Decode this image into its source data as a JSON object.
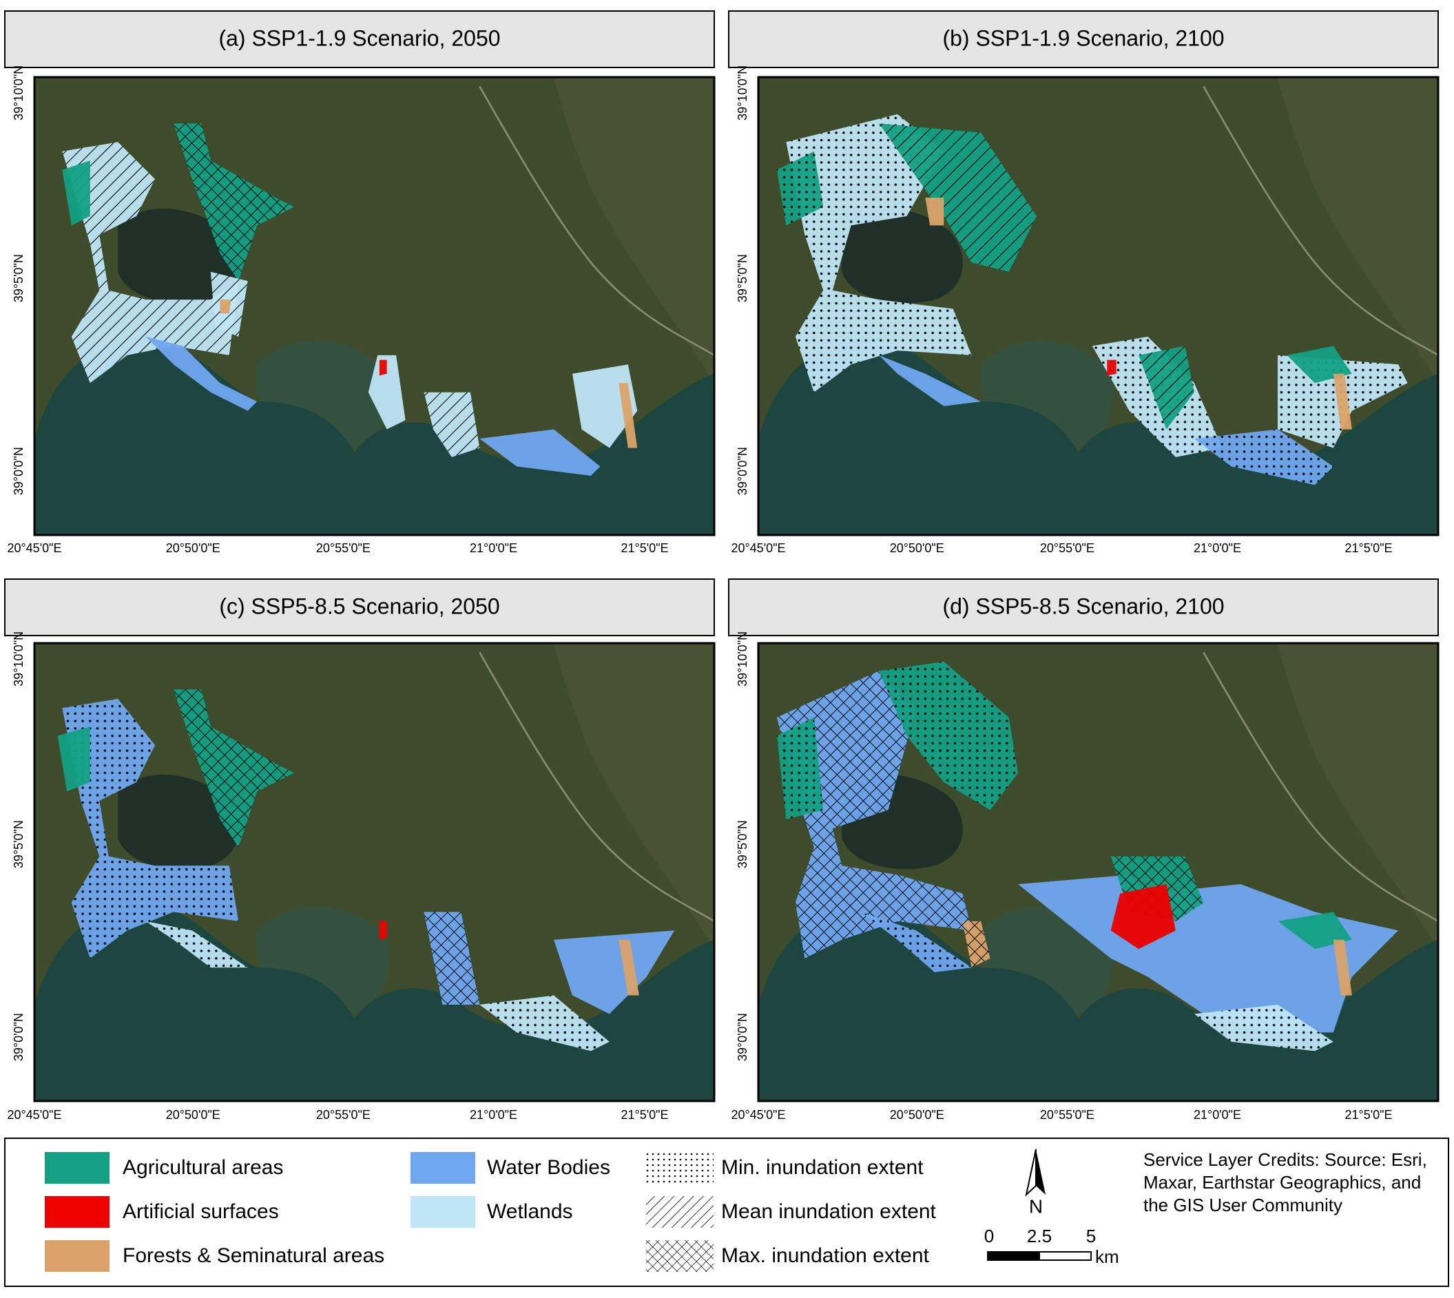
{
  "panels": [
    {
      "title": "(a) SSP1-1.9 Scenario, 2050",
      "lat_labels": [
        "39°10'0\"N",
        "39°5'0\"N",
        "39°0'0\"N"
      ],
      "lon_labels": [
        "20°45'0\"E",
        "20°50'0\"E",
        "20°55'0\"E",
        "21°0'0\"E",
        "21°5'0\"E"
      ]
    },
    {
      "title": "(b) SSP1-1.9 Scenario, 2100",
      "lat_labels": [
        "39°10'0\"N",
        "39°5'0\"N",
        "39°0'0\"N"
      ],
      "lon_labels": [
        "20°45'0\"E",
        "20°50'0\"E",
        "20°55'0\"E",
        "21°0'0\"E",
        "21°5'0\"E"
      ]
    },
    {
      "title": "(c) SSP5-8.5 Scenario, 2050",
      "lat_labels": [
        "39°10'0\"N",
        "39°5'0\"N",
        "39°0'0\"N"
      ],
      "lon_labels": [
        "20°45'0\"E",
        "20°50'0\"E",
        "20°55'0\"E",
        "21°0'0\"E",
        "21°5'0\"E"
      ]
    },
    {
      "title": "(d) SSP5-8.5 Scenario, 2100",
      "lat_labels": [
        "39°10'0\"N",
        "39°5'0\"N",
        "39°0'0\"N"
      ],
      "lon_labels": [
        "20°45'0\"E",
        "20°50'0\"E",
        "20°55'0\"E",
        "21°0'0\"E",
        "21°5'0\"E"
      ]
    }
  ],
  "legend": {
    "classes": [
      {
        "label": "Agricultural areas",
        "color": "#13a085"
      },
      {
        "label": "Artificial surfaces",
        "color": "#ee0000"
      },
      {
        "label": "Forests & Seminatural areas",
        "color": "#dba36a"
      },
      {
        "label": "Water Bodies",
        "color": "#70a8f0"
      },
      {
        "label": "Wetlands",
        "color": "#bfe6f7"
      }
    ],
    "extents": [
      {
        "label": "Min. inundation extent"
      },
      {
        "label": "Mean inundation extent"
      },
      {
        "label": "Max. inundation extent"
      }
    ]
  },
  "north_arrow": "N",
  "scale_bar": {
    "ticks": [
      0,
      2.5,
      5
    ],
    "unit": "km"
  },
  "credits": "Service Layer Credits: Source: Esri, Maxar, Earthstar Geographics, and the GIS User Community"
}
